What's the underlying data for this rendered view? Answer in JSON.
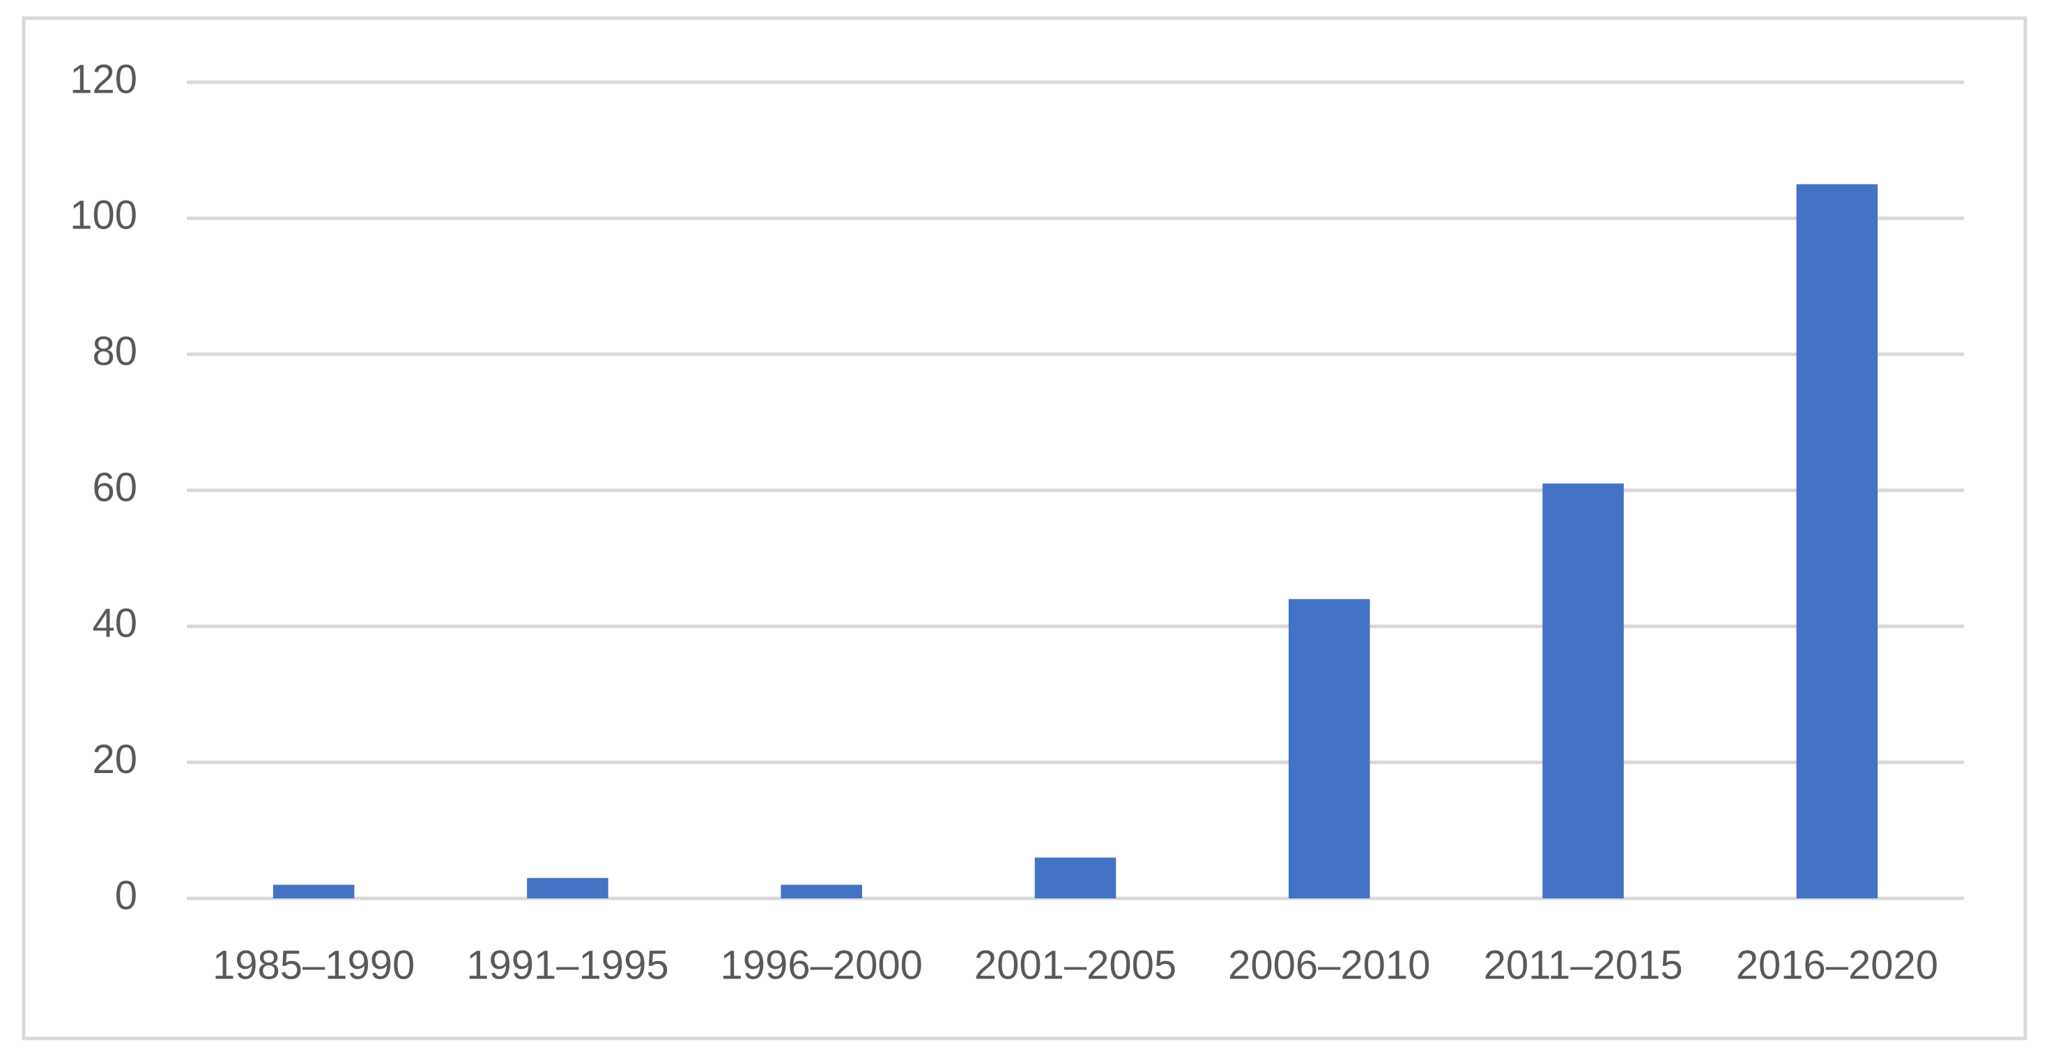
{
  "chart_data": {
    "type": "bar",
    "categories": [
      "1985–1990",
      "1991–1995",
      "1996–2000",
      "2001–2005",
      "2006–2010",
      "2011–2015",
      "2016–2020"
    ],
    "values": [
      2,
      3,
      2,
      6,
      44,
      61,
      105
    ],
    "color": "#4472c4",
    "ylim": [
      0,
      120
    ],
    "yticks": [
      0,
      20,
      40,
      60,
      80,
      100,
      120
    ],
    "grid": true
  }
}
